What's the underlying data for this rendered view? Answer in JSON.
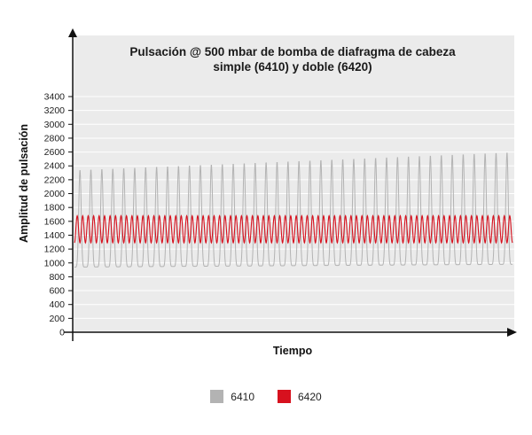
{
  "chart_data": {
    "type": "line",
    "title_lines": [
      "Pulsación @ 500 mbar de bomba de diafragma de cabeza",
      "simple (6410) y doble (6420)"
    ],
    "xlabel": "Tiempo",
    "ylabel": "Amplitud de pulsación",
    "ylim": [
      0,
      3400
    ],
    "yticks": [
      0,
      200,
      400,
      600,
      800,
      1000,
      1200,
      1400,
      1600,
      1800,
      2000,
      2200,
      2400,
      2600,
      2800,
      3000,
      3200,
      3400
    ],
    "grid": true,
    "legend_position": "bottom-center",
    "background": "#ebebeb",
    "series": [
      {
        "name": "6410",
        "color": "#b3b3b3",
        "cycles": 40,
        "peak_start": 2340,
        "peak_end": 2600,
        "trough_start": 940,
        "trough_end": 980
      },
      {
        "name": "6420",
        "color": "#d7111e",
        "cycles": 80,
        "peak": 1680,
        "trough": 1290
      }
    ]
  }
}
